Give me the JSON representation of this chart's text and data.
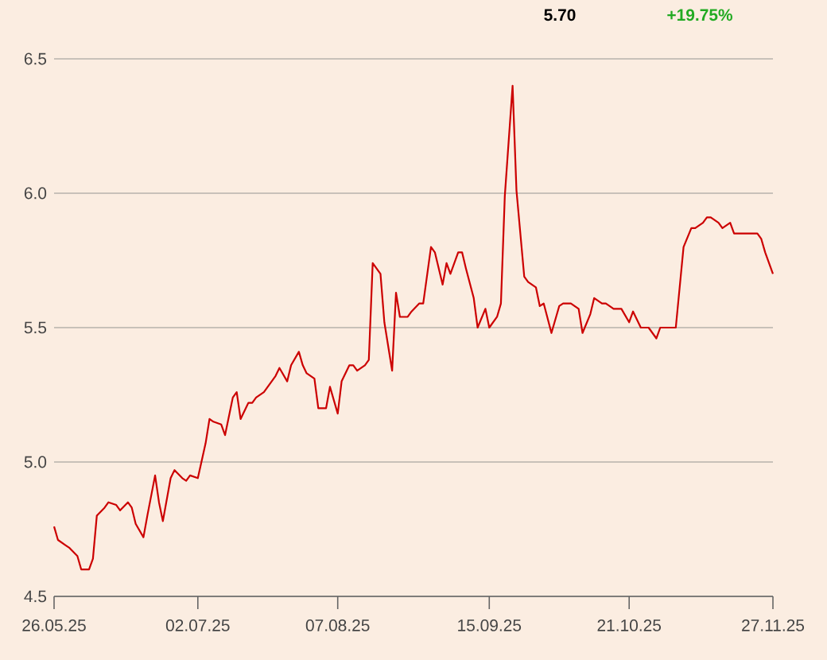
{
  "chart_data": {
    "type": "line",
    "annotations": [
      "5.70",
      "+19.75%"
    ],
    "xlim": [
      "2025-05-26",
      "2025-11-27"
    ],
    "xticks": [
      {
        "value": "2025-05-26",
        "label": "26.05.25"
      },
      {
        "value": "2025-07-02",
        "label": "02.07.25"
      },
      {
        "value": "2025-08-07",
        "label": "07.08.25"
      },
      {
        "value": "2025-09-15",
        "label": "15.09.25"
      },
      {
        "value": "2025-10-21",
        "label": "21.10.25"
      },
      {
        "value": "2025-11-27",
        "label": "27.11.25"
      }
    ],
    "ylim": [
      4.5,
      6.5
    ],
    "yticks": [
      4.5,
      {
        "value": 5.0,
        "label": "5.0"
      },
      5.5,
      {
        "value": 6.0,
        "label": "6.0"
      },
      6.5
    ],
    "grid": "y",
    "series": [
      {
        "color": "#cc0000",
        "x": [
          "2025-05-26",
          "2025-05-27",
          "2025-05-29",
          "2025-05-30",
          "2025-06-01",
          "2025-06-02",
          "2025-06-04",
          "2025-06-05",
          "2025-06-06",
          "2025-06-08",
          "2025-06-09",
          "2025-06-11",
          "2025-06-12",
          "2025-06-14",
          "2025-06-15",
          "2025-06-16",
          "2025-06-18",
          "2025-06-19",
          "2025-06-21",
          "2025-06-22",
          "2025-06-23",
          "2025-06-25",
          "2025-06-26",
          "2025-06-28",
          "2025-06-29",
          "2025-06-30",
          "2025-07-02",
          "2025-07-04",
          "2025-07-05",
          "2025-07-06",
          "2025-07-08",
          "2025-07-09",
          "2025-07-11",
          "2025-07-12",
          "2025-07-13",
          "2025-07-15",
          "2025-07-16",
          "2025-07-17",
          "2025-07-19",
          "2025-07-20",
          "2025-07-22",
          "2025-07-23",
          "2025-07-25",
          "2025-07-26",
          "2025-07-28",
          "2025-07-29",
          "2025-07-30",
          "2025-08-01",
          "2025-08-02",
          "2025-08-04",
          "2025-08-05",
          "2025-08-07",
          "2025-08-08",
          "2025-08-10",
          "2025-08-11",
          "2025-08-12",
          "2025-08-14",
          "2025-08-15",
          "2025-08-16",
          "2025-08-18",
          "2025-08-19",
          "2025-08-21",
          "2025-08-22",
          "2025-08-23",
          "2025-08-25",
          "2025-08-26",
          "2025-08-28",
          "2025-08-29",
          "2025-08-31",
          "2025-09-01",
          "2025-09-03",
          "2025-09-04",
          "2025-09-05",
          "2025-09-07",
          "2025-09-08",
          "2025-09-09",
          "2025-09-11",
          "2025-09-12",
          "2025-09-14",
          "2025-09-15",
          "2025-09-17",
          "2025-09-18",
          "2025-09-19",
          "2025-09-21",
          "2025-09-22",
          "2025-09-24",
          "2025-09-25",
          "2025-09-27",
          "2025-09-28",
          "2025-09-29",
          "2025-10-01",
          "2025-10-03",
          "2025-10-04",
          "2025-10-06",
          "2025-10-08",
          "2025-10-09",
          "2025-10-11",
          "2025-10-12",
          "2025-10-14",
          "2025-10-15",
          "2025-10-17",
          "2025-10-19",
          "2025-10-21",
          "2025-10-22",
          "2025-10-24",
          "2025-10-26",
          "2025-10-28",
          "2025-10-29",
          "2025-11-02",
          "2025-11-04",
          "2025-11-06",
          "2025-11-07",
          "2025-11-09",
          "2025-11-10",
          "2025-11-11",
          "2025-11-13",
          "2025-11-14",
          "2025-11-16",
          "2025-11-17",
          "2025-11-23",
          "2025-11-24",
          "2025-11-25",
          "2025-11-27"
        ],
        "values": [
          4.76,
          4.71,
          4.69,
          4.68,
          4.65,
          4.6,
          4.6,
          4.64,
          4.8,
          4.83,
          4.85,
          4.84,
          4.82,
          4.85,
          4.83,
          4.77,
          4.72,
          4.8,
          4.95,
          4.85,
          4.78,
          4.94,
          4.97,
          4.94,
          4.93,
          4.95,
          4.94,
          5.07,
          5.16,
          5.15,
          5.14,
          5.1,
          5.24,
          5.26,
          5.16,
          5.22,
          5.22,
          5.24,
          5.26,
          5.28,
          5.32,
          5.35,
          5.3,
          5.36,
          5.41,
          5.36,
          5.33,
          5.31,
          5.2,
          5.2,
          5.28,
          5.18,
          5.3,
          5.36,
          5.36,
          5.34,
          5.36,
          5.38,
          5.74,
          5.7,
          5.52,
          5.34,
          5.63,
          5.54,
          5.54,
          5.56,
          5.59,
          5.59,
          5.8,
          5.78,
          5.66,
          5.74,
          5.7,
          5.78,
          5.78,
          5.72,
          5.61,
          5.5,
          5.57,
          5.5,
          5.54,
          5.59,
          5.99,
          6.4,
          6.01,
          5.69,
          5.67,
          5.65,
          5.58,
          5.59,
          5.48,
          5.58,
          5.59,
          5.59,
          5.57,
          5.48,
          5.55,
          5.61,
          5.59,
          5.59,
          5.57,
          5.57,
          5.52,
          5.56,
          5.5,
          5.5,
          5.46,
          5.5,
          5.5,
          5.8,
          5.87,
          5.87,
          5.89,
          5.91,
          5.91,
          5.89,
          5.87,
          5.89,
          5.85,
          5.85,
          5.83,
          5.78,
          5.7
        ]
      }
    ]
  }
}
